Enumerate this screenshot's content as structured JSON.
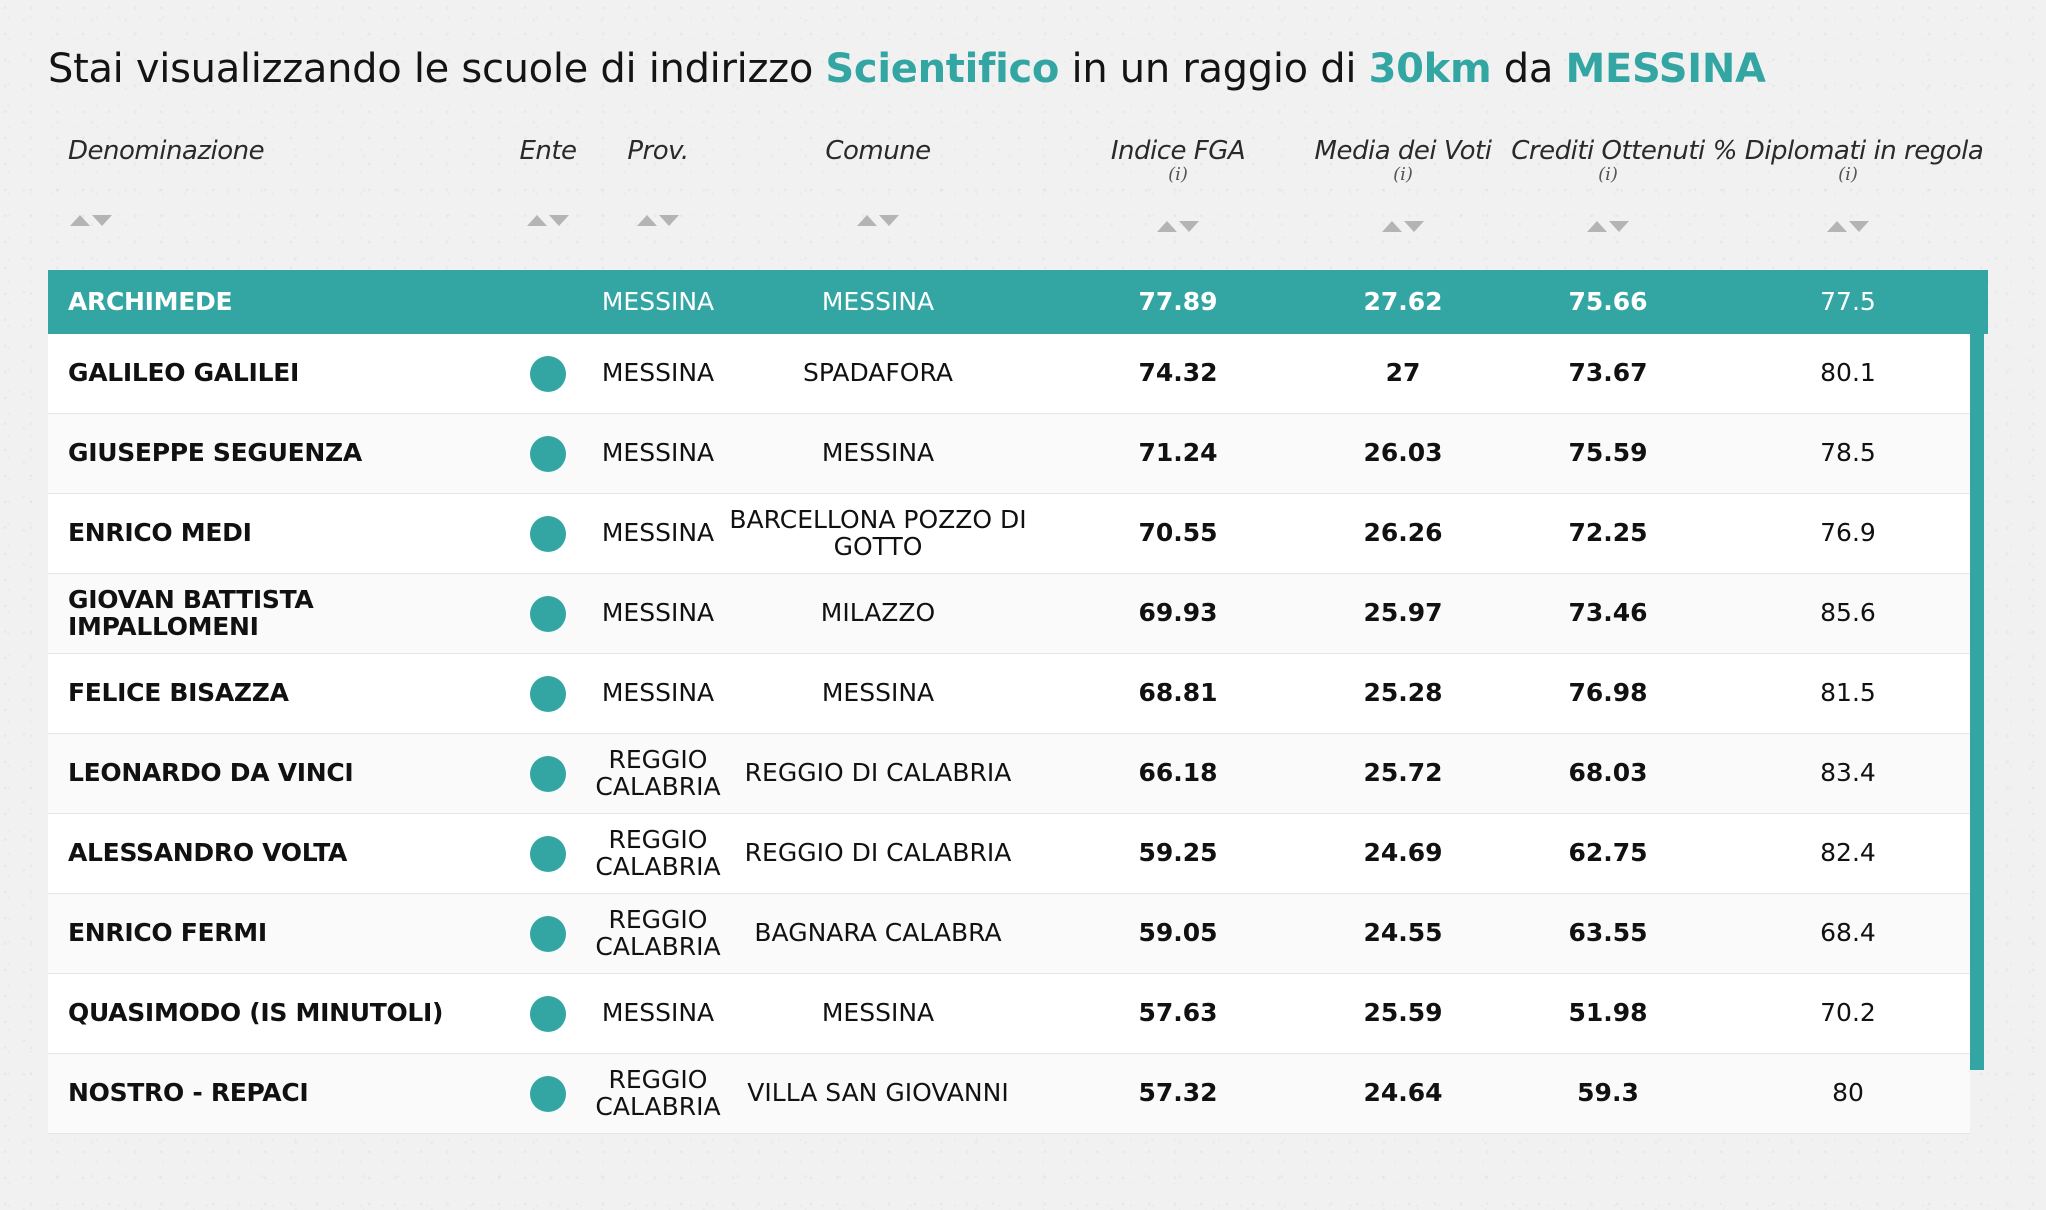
{
  "title": {
    "prefix": "Stai visualizzando le scuole di indirizzo ",
    "indirizzo": "Scientifico",
    "middle": " in un raggio di ",
    "raggio": "30km",
    "connector": " da ",
    "citta": "MESSINA"
  },
  "columns": [
    {
      "label": "Denominazione",
      "info": ""
    },
    {
      "label": "Ente",
      "info": ""
    },
    {
      "label": "Prov.",
      "info": ""
    },
    {
      "label": "Comune",
      "info": ""
    },
    {
      "label": "Indice FGA",
      "info": "(i)"
    },
    {
      "label": "Media dei Voti",
      "info": "(i)"
    },
    {
      "label": "Crediti Ottenuti",
      "info": "(i)"
    },
    {
      "label": "% Diplomati in regola",
      "info": "(i)"
    }
  ],
  "colors": {
    "accent": "#33a6a3"
  },
  "sort_icons": "sort-asc-desc-icon",
  "rows": [
    {
      "name": "ARCHIMEDE",
      "ente": false,
      "prov": "MESSINA",
      "comune": "MESSINA",
      "fga": "77.89",
      "media": "27.62",
      "crediti": "75.66",
      "diplomati": "77.5",
      "selected": true
    },
    {
      "name": "GALILEO GALILEI",
      "ente": true,
      "prov": "MESSINA",
      "comune": "SPADAFORA",
      "fga": "74.32",
      "media": "27",
      "crediti": "73.67",
      "diplomati": "80.1"
    },
    {
      "name": "GIUSEPPE SEGUENZA",
      "ente": true,
      "prov": "MESSINA",
      "comune": "MESSINA",
      "fga": "71.24",
      "media": "26.03",
      "crediti": "75.59",
      "diplomati": "78.5"
    },
    {
      "name": "ENRICO MEDI",
      "ente": true,
      "prov": "MESSINA",
      "comune": "BARCELLONA POZZO DI GOTTO",
      "fga": "70.55",
      "media": "26.26",
      "crediti": "72.25",
      "diplomati": "76.9"
    },
    {
      "name": "GIOVAN BATTISTA IMPALLOMENI",
      "ente": true,
      "prov": "MESSINA",
      "comune": "MILAZZO",
      "fga": "69.93",
      "media": "25.97",
      "crediti": "73.46",
      "diplomati": "85.6"
    },
    {
      "name": "FELICE BISAZZA",
      "ente": true,
      "prov": "MESSINA",
      "comune": "MESSINA",
      "fga": "68.81",
      "media": "25.28",
      "crediti": "76.98",
      "diplomati": "81.5"
    },
    {
      "name": "LEONARDO DA VINCI",
      "ente": true,
      "prov": "REGGIO CALABRIA",
      "comune": "REGGIO DI CALABRIA",
      "fga": "66.18",
      "media": "25.72",
      "crediti": "68.03",
      "diplomati": "83.4"
    },
    {
      "name": "ALESSANDRO VOLTA",
      "ente": true,
      "prov": "REGGIO CALABRIA",
      "comune": "REGGIO DI CALABRIA",
      "fga": "59.25",
      "media": "24.69",
      "crediti": "62.75",
      "diplomati": "82.4"
    },
    {
      "name": "ENRICO FERMI",
      "ente": true,
      "prov": "REGGIO CALABRIA",
      "comune": "BAGNARA CALABRA",
      "fga": "59.05",
      "media": "24.55",
      "crediti": "63.55",
      "diplomati": "68.4"
    },
    {
      "name": "QUASIMODO (IS MINUTOLI)",
      "ente": true,
      "prov": "MESSINA",
      "comune": "MESSINA",
      "fga": "57.63",
      "media": "25.59",
      "crediti": "51.98",
      "diplomati": "70.2"
    },
    {
      "name": "NOSTRO - REPACI",
      "ente": true,
      "prov": "REGGIO CALABRIA",
      "comune": "VILLA SAN GIOVANNI",
      "fga": "57.32",
      "media": "24.64",
      "crediti": "59.3",
      "diplomati": "80"
    }
  ]
}
